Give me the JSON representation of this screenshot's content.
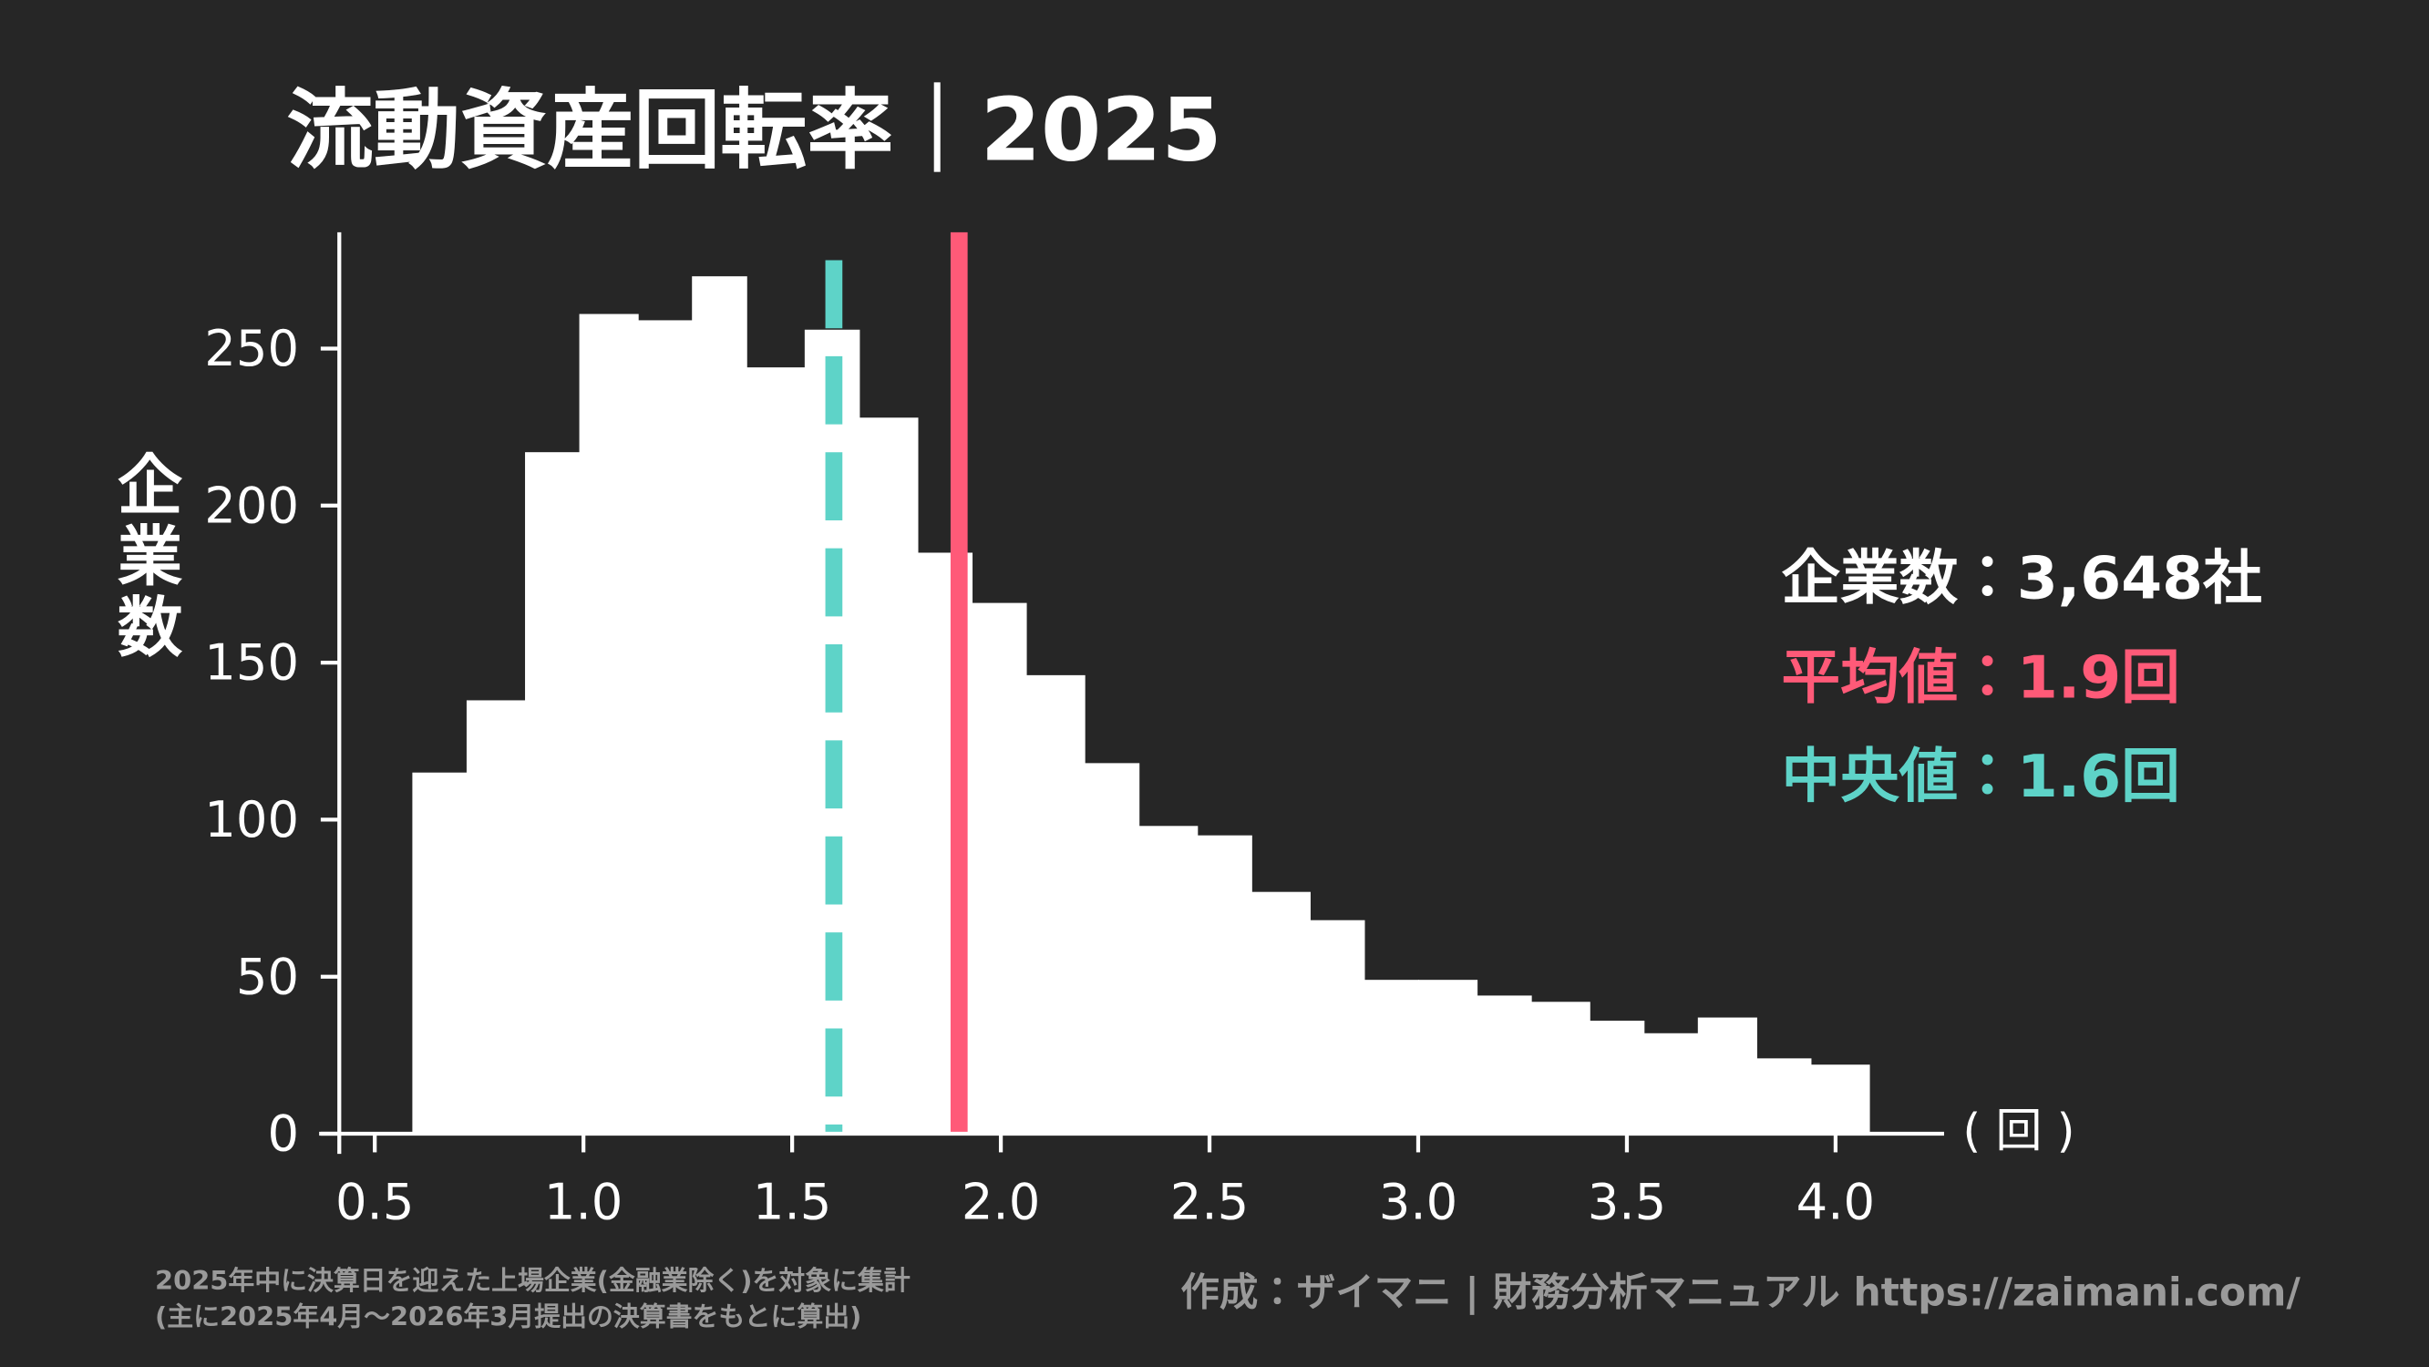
{
  "chart_data": {
    "type": "histogram",
    "title": "流動資産回転率｜2025",
    "ylabel": "企業数",
    "xlabel": "( 回 )",
    "bins": [
      0.59,
      0.72,
      0.86,
      0.99,
      1.13,
      1.26,
      1.39,
      1.53,
      1.66,
      1.8,
      1.93,
      2.06,
      2.2,
      2.33,
      2.47,
      2.6,
      2.74,
      2.87,
      3.0,
      3.14,
      3.27,
      3.41,
      3.54,
      3.67,
      3.81,
      3.94,
      4.08
    ],
    "counts": [
      115,
      138,
      217,
      261,
      259,
      273,
      244,
      256,
      228,
      185,
      169,
      146,
      118,
      98,
      95,
      77,
      68,
      49,
      49,
      44,
      42,
      36,
      32,
      37,
      24,
      22
    ],
    "color": "#ffffff",
    "xlim": [
      0.415,
      4.26
    ],
    "ylim": [
      0,
      287
    ],
    "xticks": [
      0.5,
      {
        "value": 1,
        "label": "1.0"
      },
      1.5,
      {
        "value": 2,
        "label": "2.0"
      },
      2.5,
      {
        "value": 3,
        "label": "3.0"
      },
      3.5,
      {
        "value": 4,
        "label": "4.0"
      }
    ],
    "yticks": [
      0,
      50,
      100,
      150,
      200,
      250
    ],
    "count_label": "企業数：3,648社",
    "mean": {
      "value": 1.9,
      "label": "平均値：1.9回",
      "color": "#ff5a78"
    },
    "median": {
      "value": 1.6,
      "label": "中央値：1.6回",
      "color": "#5ed3c8"
    },
    "footnote": [
      "2025年中に決算日を迎えた上場企業(金融業除く)を対象に集計",
      "(主に2025年4月～2026年3月提出の決算書をもとに算出)"
    ],
    "credit": "作成：ザイマニ | 財務分析マニュアル https://zaimani.com/"
  }
}
